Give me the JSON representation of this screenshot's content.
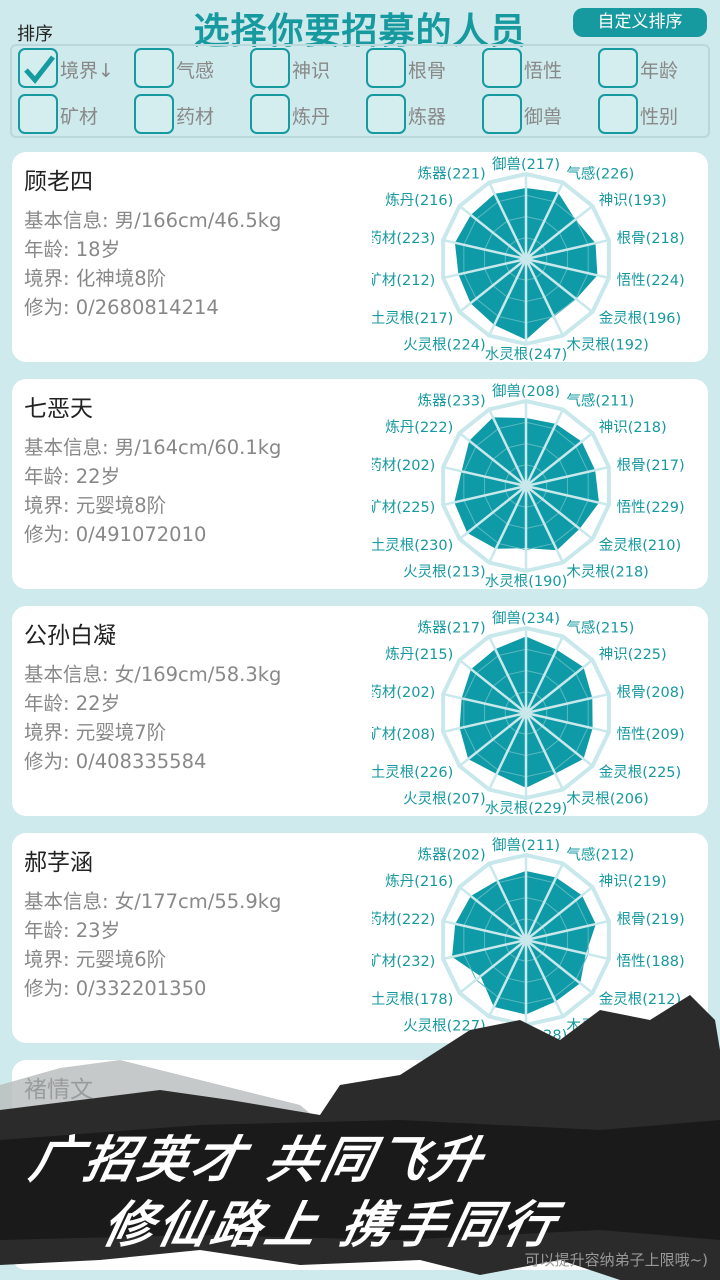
{
  "header": {
    "title": "选择你要招募的人员",
    "custom_sort_label": "自定义排序",
    "sort_label": "排序"
  },
  "sort_options": [
    {
      "label": "境界↓",
      "checked": true
    },
    {
      "label": "气感",
      "checked": false
    },
    {
      "label": "神识",
      "checked": false
    },
    {
      "label": "根骨",
      "checked": false
    },
    {
      "label": "悟性",
      "checked": false
    },
    {
      "label": "年龄",
      "checked": false
    },
    {
      "label": "矿材",
      "checked": false
    },
    {
      "label": "药材",
      "checked": false
    },
    {
      "label": "炼丹",
      "checked": false
    },
    {
      "label": "炼器",
      "checked": false
    },
    {
      "label": "御兽",
      "checked": false
    },
    {
      "label": "性别",
      "checked": false
    }
  ],
  "attributes": [
    "御兽",
    "气感",
    "神识",
    "根骨",
    "悟性",
    "金灵根",
    "木灵根",
    "水灵根",
    "火灵根",
    "土灵根",
    "矿材",
    "药材",
    "炼丹",
    "炼器"
  ],
  "radar_scale_max": 260,
  "colors": {
    "accent": "#16999f",
    "fill": "#0e9aa6",
    "grid": "#c8e8ec"
  },
  "candidates": [
    {
      "name": "顾老四",
      "basic": "基本信息: 男/166cm/46.5kg",
      "age": "年龄: 18岁",
      "realm": "境界: 化神境8阶",
      "cultivation": "修为: 0/2680814214",
      "stats": [
        217,
        226,
        193,
        218,
        224,
        196,
        192,
        247,
        224,
        217,
        212,
        223,
        216,
        221
      ]
    },
    {
      "name": "七恶天",
      "basic": "基本信息: 男/164cm/60.1kg",
      "age": "年龄: 22岁",
      "realm": "境界: 元婴境8阶",
      "cultivation": "修为: 0/491072010",
      "stats": [
        208,
        211,
        218,
        217,
        229,
        210,
        218,
        190,
        213,
        230,
        225,
        202,
        222,
        233
      ]
    },
    {
      "name": "公孙白凝",
      "basic": "基本信息: 女/169cm/58.3kg",
      "age": "年龄: 22岁",
      "realm": "境界: 元婴境7阶",
      "cultivation": "修为: 0/408335584",
      "stats": [
        234,
        215,
        225,
        208,
        209,
        225,
        206,
        229,
        207,
        226,
        208,
        202,
        215,
        217
      ]
    },
    {
      "name": "郝芓涵",
      "basic": "基本信息: 女/177cm/55.9kg",
      "age": "年龄: 23岁",
      "realm": "境界: 元婴境6阶",
      "cultivation": "修为: 0/332201350",
      "stats": [
        211,
        212,
        219,
        219,
        188,
        212,
        209,
        228,
        227,
        178,
        232,
        222,
        216,
        202
      ]
    },
    {
      "name": "褚情文"
    }
  ],
  "banner": {
    "line1": "广招英才 共同飞升",
    "line2": "修仙路上 携手同行",
    "hint": "可以提升容纳弟子上限哦~)"
  }
}
